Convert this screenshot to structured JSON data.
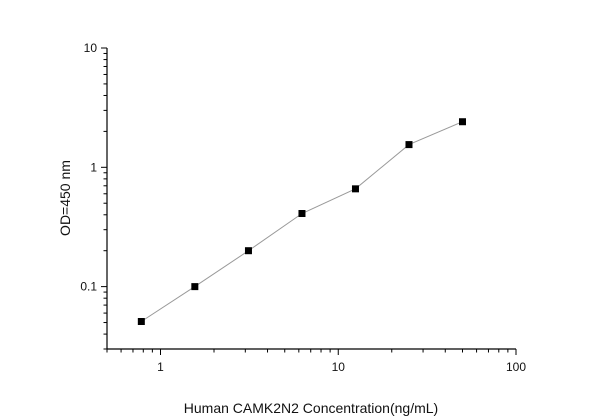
{
  "chart_data": {
    "type": "line",
    "title": "",
    "xlabel": "Human CAMK2N2 Concentration(ng/mL)",
    "ylabel": "OD=450 nm",
    "x_scale": "log",
    "y_scale": "log",
    "xlim": [
      0.5,
      100
    ],
    "ylim": [
      0.03,
      10
    ],
    "x_ticks": [
      {
        "value": 1,
        "label": "1"
      },
      {
        "value": 10,
        "label": "10"
      },
      {
        "value": 100,
        "label": "100"
      }
    ],
    "y_ticks": [
      {
        "value": 0.1,
        "label": "0.1"
      },
      {
        "value": 1,
        "label": "1"
      },
      {
        "value": 10,
        "label": "10"
      }
    ],
    "grid": false,
    "marker": "square",
    "line_color": "#999999",
    "marker_color": "#000000",
    "series": [
      {
        "x": [
          0.78,
          1.56,
          3.125,
          6.25,
          12.5,
          25,
          50
        ],
        "y": [
          0.051,
          0.1,
          0.2,
          0.41,
          0.66,
          1.55,
          2.41
        ]
      }
    ]
  }
}
